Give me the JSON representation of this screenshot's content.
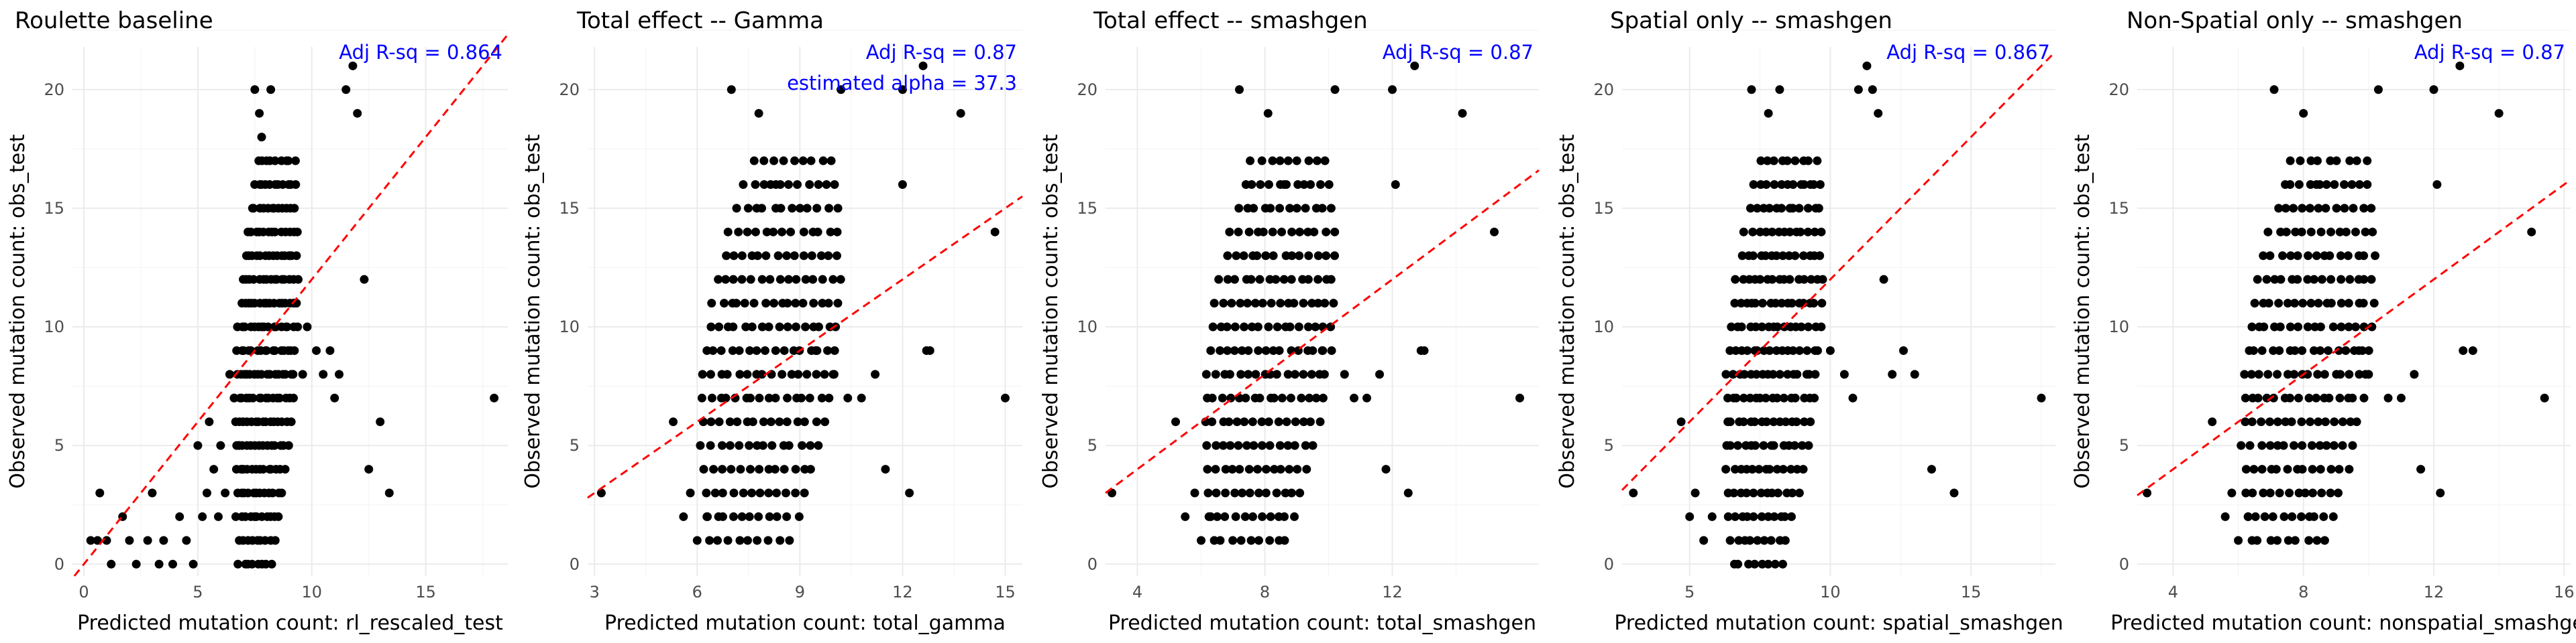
{
  "chart_data": [
    {
      "type": "scatter",
      "title": "Roulette baseline",
      "xlabel": "Predicted mutation count: rl_rescaled_test",
      "ylabel": "Observed mutation count: obs_test",
      "annotations": [
        "Adj R-sq = 0.864"
      ],
      "xlim": [
        -0.5,
        18.6
      ],
      "ylim": [
        -0.5,
        21.8
      ],
      "xticks": [
        0,
        5,
        10,
        15
      ],
      "yticks": [
        0,
        5,
        10,
        15,
        20
      ],
      "ref_line": {
        "slope": 1.2,
        "intercept": 0
      },
      "points": [
        [
          0.3,
          1
        ],
        [
          0.6,
          1
        ],
        [
          0.7,
          3
        ],
        [
          1,
          1
        ],
        [
          1.2,
          0
        ],
        [
          1.7,
          2
        ],
        [
          2,
          1
        ],
        [
          2.3,
          0
        ],
        [
          2.8,
          1
        ],
        [
          3,
          3
        ],
        [
          3.3,
          0
        ],
        [
          3.5,
          1
        ],
        [
          3.9,
          0
        ],
        [
          4.2,
          2
        ],
        [
          4.5,
          1
        ],
        [
          4.8,
          0
        ],
        [
          5,
          5
        ],
        [
          5.2,
          2
        ],
        [
          5.4,
          3
        ],
        [
          5.5,
          6
        ],
        [
          5.7,
          4
        ],
        [
          5.9,
          2
        ],
        [
          6,
          5
        ],
        [
          6.2,
          3
        ],
        [
          6.4,
          8
        ],
        [
          6.6,
          7
        ],
        [
          6.8,
          5
        ],
        [
          7,
          4
        ],
        [
          7.5,
          20
        ],
        [
          7.7,
          19
        ],
        [
          7.8,
          18
        ],
        [
          8.2,
          20
        ],
        [
          9,
          13
        ],
        [
          9.2,
          11
        ],
        [
          9.6,
          8
        ],
        [
          9.8,
          10
        ],
        [
          10.2,
          9
        ],
        [
          10.5,
          8
        ],
        [
          10.8,
          9
        ],
        [
          11,
          7
        ],
        [
          11.2,
          8
        ],
        [
          11.5,
          20
        ],
        [
          11.8,
          21
        ],
        [
          12,
          19
        ],
        [
          12.3,
          12
        ],
        [
          12.5,
          4
        ],
        [
          13,
          6
        ],
        [
          13.4,
          3
        ],
        [
          18,
          7
        ]
      ],
      "bands": [
        [
          6.4,
          9.6,
          0,
          17,
          18
        ]
      ]
    },
    {
      "type": "scatter",
      "title": "Total effect -- Gamma",
      "xlabel": "Predicted mutation count: total_gamma",
      "ylabel": "Observed mutation count: obs_test",
      "annotations": [
        "Adj R-sq = 0.87",
        "estimated alpha = 37.3"
      ],
      "xlim": [
        2.8,
        15.5
      ],
      "ylim": [
        -0.5,
        21.8
      ],
      "xticks": [
        3,
        6,
        9,
        12,
        15
      ],
      "yticks": [
        0,
        5,
        10,
        15,
        20
      ],
      "ref_line": {
        "slope": 1,
        "intercept": 0
      },
      "points": [
        [
          3.2,
          3
        ],
        [
          5.3,
          6
        ],
        [
          5.6,
          2
        ],
        [
          5.8,
          3
        ],
        [
          6,
          1
        ],
        [
          6.3,
          2
        ],
        [
          7,
          20
        ],
        [
          7.8,
          19
        ],
        [
          8.3,
          16
        ],
        [
          9.5,
          9
        ],
        [
          10,
          8
        ],
        [
          10.2,
          20
        ],
        [
          10.4,
          7
        ],
        [
          10.8,
          7
        ],
        [
          11.2,
          8
        ],
        [
          11.5,
          4
        ],
        [
          12,
          20
        ],
        [
          12,
          16
        ],
        [
          12.2,
          3
        ],
        [
          12.6,
          21
        ],
        [
          12.7,
          9
        ],
        [
          12.8,
          9
        ],
        [
          13.7,
          19
        ],
        [
          14.7,
          14
        ],
        [
          15,
          7
        ]
      ],
      "bands": [
        [
          5.8,
          10.5,
          1,
          17,
          18
        ]
      ]
    },
    {
      "type": "scatter",
      "title": "Total effect -- smashgen",
      "xlabel": "Predicted mutation count: total_smashgen",
      "ylabel": "Observed mutation count: obs_test",
      "annotations": [
        "Adj R-sq = 0.87"
      ],
      "xlim": [
        3,
        16.6
      ],
      "ylim": [
        -0.5,
        21.8
      ],
      "xticks": [
        4,
        8,
        12
      ],
      "yticks": [
        0,
        5,
        10,
        15,
        20
      ],
      "ref_line": {
        "slope": 1,
        "intercept": 0
      },
      "points": [
        [
          3.2,
          3
        ],
        [
          5.2,
          6
        ],
        [
          5.5,
          2
        ],
        [
          5.8,
          3
        ],
        [
          6,
          1
        ],
        [
          6.3,
          2
        ],
        [
          7.2,
          20
        ],
        [
          8.1,
          19
        ],
        [
          8.6,
          16
        ],
        [
          9.8,
          9
        ],
        [
          10.2,
          20
        ],
        [
          10.5,
          8
        ],
        [
          10.8,
          7
        ],
        [
          11.2,
          7
        ],
        [
          11.6,
          8
        ],
        [
          11.8,
          4
        ],
        [
          12,
          20
        ],
        [
          12.1,
          16
        ],
        [
          12.5,
          3
        ],
        [
          12.7,
          21
        ],
        [
          12.9,
          9
        ],
        [
          13,
          9
        ],
        [
          14.2,
          19
        ],
        [
          15.2,
          14
        ],
        [
          16,
          7
        ]
      ],
      "bands": [
        [
          5.8,
          10.5,
          1,
          17,
          18
        ]
      ]
    },
    {
      "type": "scatter",
      "title": "Spatial only -- smashgen",
      "xlabel": "Predicted mutation count: spatial_smashgen",
      "ylabel": "Observed mutation count: obs_test",
      "annotations": [
        "Adj R-sq = 0.867"
      ],
      "xlim": [
        2.6,
        18
      ],
      "ylim": [
        -0.5,
        21.8
      ],
      "xticks": [
        5,
        10,
        15
      ],
      "yticks": [
        0,
        5,
        10,
        15,
        20
      ],
      "ref_line": {
        "slope": 1.2,
        "intercept": 0
      },
      "points": [
        [
          3,
          3
        ],
        [
          4.7,
          6
        ],
        [
          5,
          2
        ],
        [
          5.2,
          3
        ],
        [
          5.5,
          1
        ],
        [
          5.8,
          2
        ],
        [
          7.2,
          20
        ],
        [
          7.8,
          19
        ],
        [
          8.2,
          20
        ],
        [
          9.3,
          16
        ],
        [
          10,
          9
        ],
        [
          10.5,
          8
        ],
        [
          10.8,
          7
        ],
        [
          11,
          20
        ],
        [
          11.3,
          21
        ],
        [
          11.5,
          20
        ],
        [
          11.7,
          19
        ],
        [
          11.9,
          12
        ],
        [
          12.2,
          8
        ],
        [
          12.6,
          9
        ],
        [
          13,
          8
        ],
        [
          13.6,
          4
        ],
        [
          14.4,
          3
        ],
        [
          17.5,
          7
        ]
      ],
      "bands": [
        [
          6,
          10,
          0,
          17,
          18
        ]
      ]
    },
    {
      "type": "scatter",
      "title": "Non-Spatial only -- smashgen",
      "xlabel": "Predicted mutation count: nonspatial_smashgen",
      "ylabel": "Observed mutation count: obs_test",
      "annotations": [
        "Adj R-sq = 0.87"
      ],
      "xlim": [
        2.9,
        16.2
      ],
      "ylim": [
        -0.5,
        21.8
      ],
      "xticks": [
        4,
        8,
        12,
        16
      ],
      "yticks": [
        0,
        5,
        10,
        15,
        20
      ],
      "ref_line": {
        "slope": 1,
        "intercept": 0
      },
      "points": [
        [
          3.2,
          3
        ],
        [
          5.2,
          6
        ],
        [
          5.6,
          2
        ],
        [
          5.8,
          3
        ],
        [
          6,
          1
        ],
        [
          6.3,
          2
        ],
        [
          7.1,
          20
        ],
        [
          8,
          19
        ],
        [
          8.5,
          16
        ],
        [
          9.7,
          9
        ],
        [
          10,
          8
        ],
        [
          10.3,
          20
        ],
        [
          10.6,
          7
        ],
        [
          11,
          7
        ],
        [
          11.4,
          8
        ],
        [
          11.6,
          4
        ],
        [
          12,
          20
        ],
        [
          12.1,
          16
        ],
        [
          12.2,
          3
        ],
        [
          12.8,
          21
        ],
        [
          12.9,
          9
        ],
        [
          13.2,
          9
        ],
        [
          14,
          19
        ],
        [
          15,
          14
        ],
        [
          15.4,
          7
        ]
      ],
      "bands": [
        [
          5.8,
          10.5,
          1,
          17,
          18
        ]
      ]
    }
  ]
}
